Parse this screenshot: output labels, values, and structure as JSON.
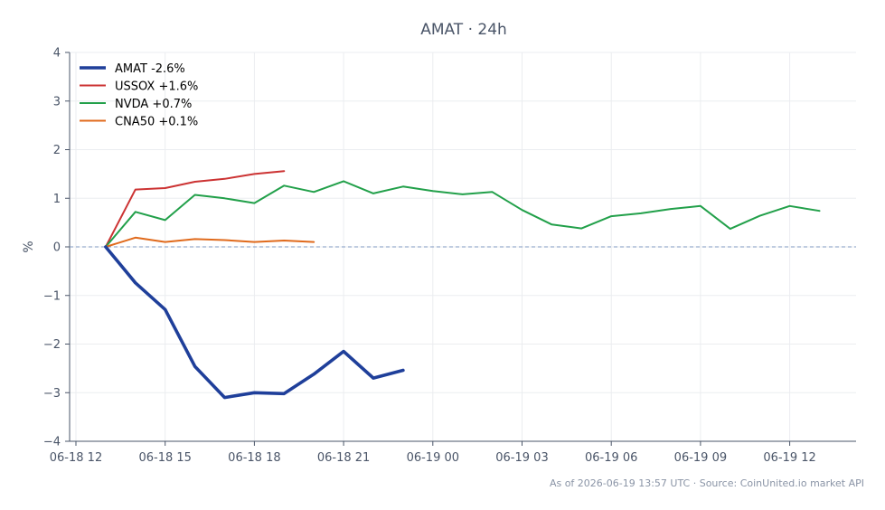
{
  "chart_data": {
    "type": "line",
    "title": "AMAT · 24h",
    "ylabel": "%",
    "xlabel": "",
    "ylim": [
      -4,
      4
    ],
    "yticks": [
      4,
      3,
      2,
      1,
      0,
      -1,
      -2,
      -3,
      -4
    ],
    "ytick_labels": [
      "4",
      "3",
      "2",
      "1",
      "0",
      "−1",
      "−2",
      "−3",
      "−4"
    ],
    "xticks": [
      {
        "hour": 0,
        "label": "06-18 12"
      },
      {
        "hour": 3,
        "label": "06-18 15"
      },
      {
        "hour": 6,
        "label": "06-18 18"
      },
      {
        "hour": 9,
        "label": "06-18 21"
      },
      {
        "hour": 12,
        "label": "06-19 00"
      },
      {
        "hour": 15,
        "label": "06-19 03"
      },
      {
        "hour": 18,
        "label": "06-19 06"
      },
      {
        "hour": 21,
        "label": "06-19 09"
      },
      {
        "hour": 24,
        "label": "06-19 12"
      }
    ],
    "xlim_hours": [
      -0.2,
      26.1
    ],
    "grid": true,
    "reference_line": 0,
    "legend_position": "top-left",
    "series": [
      {
        "name": "AMAT -2.6%",
        "color": "#1f3f9a",
        "emphasis": true,
        "x": [
          1,
          2,
          3,
          4,
          5,
          6,
          7,
          8,
          9,
          10,
          11
        ],
        "y": [
          0,
          -0.74,
          -1.29,
          -2.46,
          -3.1,
          -3.0,
          -3.02,
          -2.62,
          -2.15,
          -2.7,
          -2.54
        ]
      },
      {
        "name": "USSOX +1.6%",
        "color": "#cc3333",
        "emphasis": false,
        "x": [
          1,
          2,
          3,
          4,
          5,
          6,
          7
        ],
        "y": [
          0,
          1.18,
          1.21,
          1.34,
          1.4,
          1.5,
          1.56
        ]
      },
      {
        "name": "NVDA +0.7%",
        "color": "#22a04a",
        "emphasis": false,
        "x": [
          1,
          2,
          3,
          4,
          5,
          6,
          7,
          8,
          9,
          10,
          11,
          12,
          13,
          14,
          15,
          16,
          17,
          18,
          19,
          20,
          21,
          22,
          23,
          24,
          25
        ],
        "y": [
          0,
          0.72,
          0.55,
          1.07,
          1.0,
          0.9,
          1.26,
          1.13,
          1.35,
          1.1,
          1.24,
          1.15,
          1.08,
          1.13,
          0.76,
          0.46,
          0.38,
          0.63,
          0.69,
          0.78,
          0.84,
          0.37,
          0.64,
          0.84,
          0.74
        ]
      },
      {
        "name": "CNA50 +0.1%",
        "color": "#e06a1c",
        "emphasis": false,
        "x": [
          1,
          2,
          3,
          4,
          5,
          6,
          7,
          8
        ],
        "y": [
          0,
          0.19,
          0.1,
          0.16,
          0.14,
          0.1,
          0.13,
          0.1
        ]
      }
    ],
    "footer": "As of 2026-06-19 13:57 UTC · Source: CoinUnited.io market API"
  }
}
